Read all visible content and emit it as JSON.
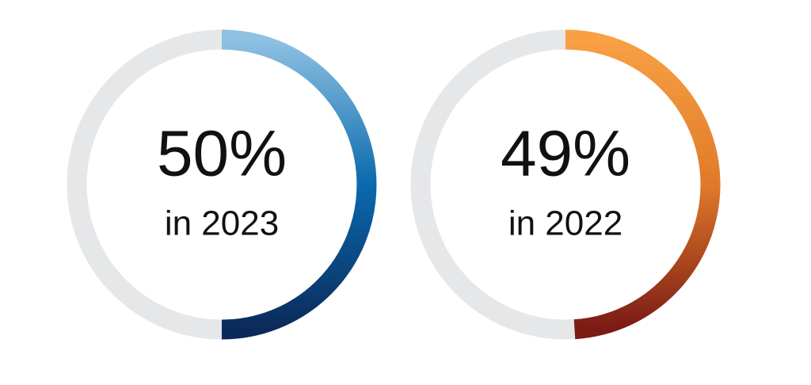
{
  "chart_data": [
    {
      "type": "donut",
      "values": [
        50
      ],
      "value_labels": [
        "50%"
      ],
      "subtitle": "in 2023",
      "max": 100,
      "colors": [
        "#8fc1e3",
        "#0a6aad",
        "#0b2a5a"
      ],
      "track_color": "#e6e7e9"
    },
    {
      "type": "donut",
      "values": [
        49
      ],
      "value_labels": [
        "49%"
      ],
      "subtitle": "in 2022",
      "max": 100,
      "colors": [
        "#f8a043",
        "#e07a2a",
        "#7a1a14"
      ],
      "track_color": "#e6e7e9"
    }
  ]
}
